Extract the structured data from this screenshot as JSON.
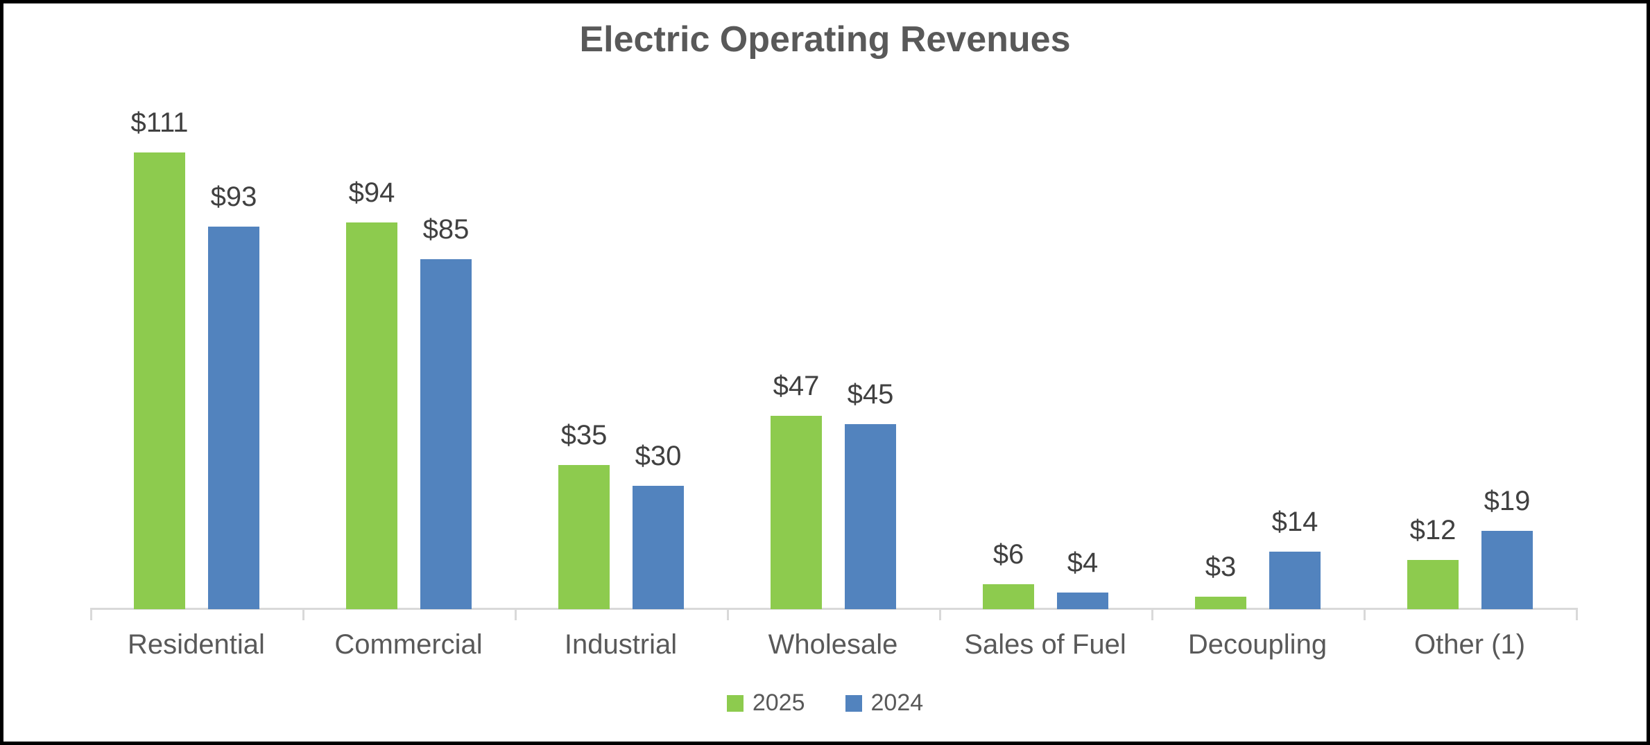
{
  "chart_data": {
    "type": "bar",
    "title": "Electric Operating Revenues",
    "categories": [
      "Residential",
      "Commercial",
      "Industrial",
      "Wholesale",
      "Sales of Fuel",
      "Decoupling",
      "Other (1)"
    ],
    "series": [
      {
        "name": "2025",
        "color": "#8DCB4E",
        "values": [
          111,
          94,
          35,
          47,
          6,
          3,
          12
        ]
      },
      {
        "name": "2024",
        "color": "#5283BE",
        "values": [
          93,
          85,
          30,
          45,
          4,
          14,
          19
        ]
      }
    ],
    "value_prefix": "$",
    "data_labels": {
      "2025": [
        "$111",
        "$94",
        "$35",
        "$47",
        "$6",
        "$3",
        "$12"
      ],
      "2024": [
        "$93",
        "$85",
        "$30",
        "$45",
        "$4",
        "$14",
        "$19"
      ]
    },
    "xlabel": "",
    "ylabel": "",
    "ylim": [
      0,
      120
    ],
    "grid": false,
    "legend_position": "bottom",
    "legend_labels": [
      "2025",
      "2024"
    ]
  },
  "style": {
    "title_color": "#595959",
    "data_label_color": "#404040",
    "category_label_color": "#595959",
    "legend_text_color": "#595959",
    "axis_line_color": "#D9D9D9",
    "frame_border_color": "#000000",
    "background_color": "#FFFFFF"
  }
}
